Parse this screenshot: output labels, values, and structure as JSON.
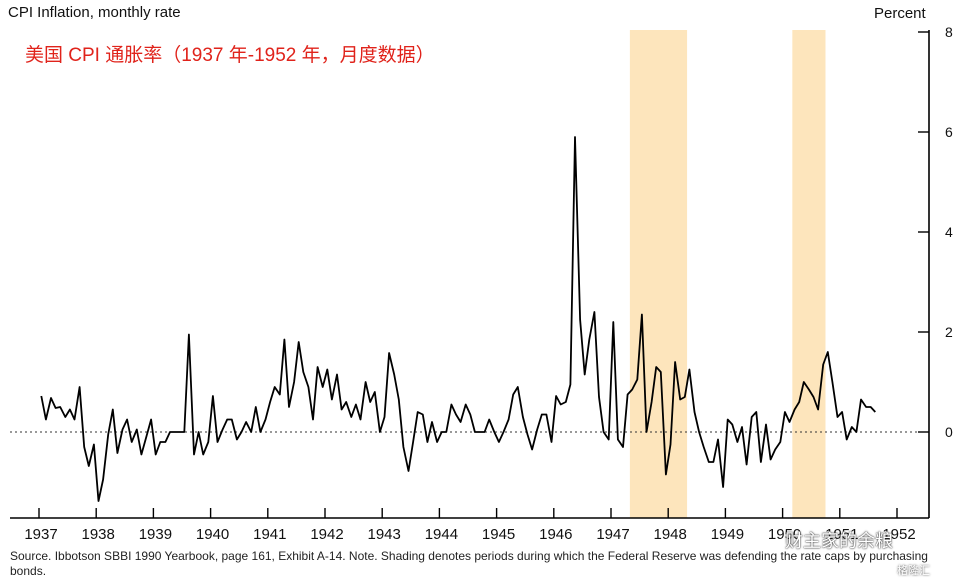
{
  "chart_data": {
    "type": "line",
    "title": "CPI Inflation, monthly rate",
    "subtitle": "美国 CPI 通胀率（1937 年-1952 年，月度数据）",
    "ylabel": "Percent",
    "xlabel": "",
    "xlim": [
      1937.0,
      1952.0
    ],
    "ylim": [
      -1.7,
      8
    ],
    "y_ticks": [
      0,
      2,
      4,
      6,
      8
    ],
    "x_tick_labels": [
      "1937",
      "1938",
      "1939",
      "1940",
      "1941",
      "1942",
      "1943",
      "1944",
      "1945",
      "1946",
      "1947",
      "1948",
      "1949",
      "1950",
      "1951",
      "1952"
    ],
    "grid": false,
    "zero_line": "dotted",
    "line_color": "#000000",
    "shading_color": "#fde5bc",
    "shaded_periods": [
      [
        1947.33,
        1948.33
      ],
      [
        1950.17,
        1950.75
      ]
    ],
    "series": [
      {
        "values": [
          [
            1937.04,
            0.72
          ],
          [
            1937.12,
            0.25
          ],
          [
            1937.21,
            0.68
          ],
          [
            1937.29,
            0.48
          ],
          [
            1937.37,
            0.5
          ],
          [
            1937.46,
            0.3
          ],
          [
            1937.54,
            0.45
          ],
          [
            1937.62,
            0.25
          ],
          [
            1937.71,
            0.9
          ],
          [
            1937.79,
            -0.3
          ],
          [
            1937.87,
            -0.68
          ],
          [
            1937.96,
            -0.25
          ],
          [
            1938.04,
            -1.38
          ],
          [
            1938.12,
            -0.95
          ],
          [
            1938.21,
            -0.05
          ],
          [
            1938.29,
            0.45
          ],
          [
            1938.37,
            -0.42
          ],
          [
            1938.46,
            0.05
          ],
          [
            1938.54,
            0.25
          ],
          [
            1938.62,
            -0.2
          ],
          [
            1938.71,
            0.05
          ],
          [
            1938.79,
            -0.45
          ],
          [
            1938.87,
            -0.12
          ],
          [
            1938.96,
            0.25
          ],
          [
            1939.04,
            -0.45
          ],
          [
            1939.12,
            -0.2
          ],
          [
            1939.21,
            -0.2
          ],
          [
            1939.29,
            0.0
          ],
          [
            1939.37,
            0.0
          ],
          [
            1939.46,
            0.0
          ],
          [
            1939.54,
            0.0
          ],
          [
            1939.62,
            1.95
          ],
          [
            1939.71,
            -0.45
          ],
          [
            1939.79,
            0.0
          ],
          [
            1939.87,
            -0.45
          ],
          [
            1939.96,
            -0.2
          ],
          [
            1940.04,
            0.72
          ],
          [
            1940.12,
            -0.2
          ],
          [
            1940.21,
            0.05
          ],
          [
            1940.29,
            0.25
          ],
          [
            1940.37,
            0.25
          ],
          [
            1940.46,
            -0.15
          ],
          [
            1940.54,
            0.0
          ],
          [
            1940.62,
            0.2
          ],
          [
            1940.71,
            0.0
          ],
          [
            1940.79,
            0.5
          ],
          [
            1940.87,
            0.0
          ],
          [
            1940.96,
            0.25
          ],
          [
            1941.04,
            0.6
          ],
          [
            1941.12,
            0.9
          ],
          [
            1941.21,
            0.75
          ],
          [
            1941.29,
            1.85
          ],
          [
            1941.37,
            0.5
          ],
          [
            1941.46,
            1.0
          ],
          [
            1941.54,
            1.8
          ],
          [
            1941.62,
            1.2
          ],
          [
            1941.71,
            0.9
          ],
          [
            1941.79,
            0.25
          ],
          [
            1941.87,
            1.3
          ],
          [
            1941.96,
            0.9
          ],
          [
            1942.04,
            1.25
          ],
          [
            1942.12,
            0.65
          ],
          [
            1942.21,
            1.15
          ],
          [
            1942.29,
            0.45
          ],
          [
            1942.37,
            0.6
          ],
          [
            1942.46,
            0.3
          ],
          [
            1942.54,
            0.55
          ],
          [
            1942.62,
            0.25
          ],
          [
            1942.71,
            1.0
          ],
          [
            1942.79,
            0.6
          ],
          [
            1942.87,
            0.8
          ],
          [
            1942.96,
            0.0
          ],
          [
            1943.04,
            0.3
          ],
          [
            1943.12,
            1.58
          ],
          [
            1943.21,
            1.15
          ],
          [
            1943.29,
            0.65
          ],
          [
            1943.37,
            -0.3
          ],
          [
            1943.46,
            -0.78
          ],
          [
            1943.54,
            -0.2
          ],
          [
            1943.62,
            0.4
          ],
          [
            1943.71,
            0.35
          ],
          [
            1943.79,
            -0.2
          ],
          [
            1943.87,
            0.2
          ],
          [
            1943.96,
            -0.2
          ],
          [
            1944.04,
            0.0
          ],
          [
            1944.12,
            0.0
          ],
          [
            1944.21,
            0.55
          ],
          [
            1944.29,
            0.35
          ],
          [
            1944.37,
            0.2
          ],
          [
            1944.46,
            0.55
          ],
          [
            1944.54,
            0.35
          ],
          [
            1944.62,
            0.0
          ],
          [
            1944.71,
            0.0
          ],
          [
            1944.79,
            0.0
          ],
          [
            1944.87,
            0.25
          ],
          [
            1944.96,
            0.0
          ],
          [
            1945.04,
            -0.2
          ],
          [
            1945.12,
            0.0
          ],
          [
            1945.21,
            0.25
          ],
          [
            1945.29,
            0.75
          ],
          [
            1945.37,
            0.9
          ],
          [
            1945.46,
            0.3
          ],
          [
            1945.54,
            -0.05
          ],
          [
            1945.62,
            -0.35
          ],
          [
            1945.71,
            0.05
          ],
          [
            1945.79,
            0.35
          ],
          [
            1945.87,
            0.35
          ],
          [
            1945.96,
            -0.2
          ],
          [
            1946.04,
            0.72
          ],
          [
            1946.12,
            0.55
          ],
          [
            1946.21,
            0.6
          ],
          [
            1946.29,
            0.95
          ],
          [
            1946.37,
            5.9
          ],
          [
            1946.46,
            2.25
          ],
          [
            1946.54,
            1.15
          ],
          [
            1946.62,
            1.85
          ],
          [
            1946.71,
            2.4
          ],
          [
            1946.79,
            0.7
          ],
          [
            1946.87,
            0.0
          ],
          [
            1946.96,
            -0.15
          ],
          [
            1947.04,
            2.2
          ],
          [
            1947.12,
            -0.15
          ],
          [
            1947.21,
            -0.3
          ],
          [
            1947.29,
            0.75
          ],
          [
            1947.37,
            0.85
          ],
          [
            1947.46,
            1.05
          ],
          [
            1947.54,
            2.35
          ],
          [
            1947.62,
            0.0
          ],
          [
            1947.71,
            0.6
          ],
          [
            1947.79,
            1.3
          ],
          [
            1947.87,
            1.2
          ],
          [
            1947.96,
            -0.85
          ],
          [
            1948.04,
            -0.25
          ],
          [
            1948.12,
            1.4
          ],
          [
            1948.21,
            0.65
          ],
          [
            1948.29,
            0.7
          ],
          [
            1948.37,
            1.25
          ],
          [
            1948.46,
            0.4
          ],
          [
            1948.54,
            0.0
          ],
          [
            1948.62,
            -0.3
          ],
          [
            1948.71,
            -0.6
          ],
          [
            1948.79,
            -0.6
          ],
          [
            1948.87,
            -0.15
          ],
          [
            1948.96,
            -1.1
          ],
          [
            1949.04,
            0.25
          ],
          [
            1949.12,
            0.15
          ],
          [
            1949.21,
            -0.2
          ],
          [
            1949.29,
            0.1
          ],
          [
            1949.37,
            -0.65
          ],
          [
            1949.46,
            0.3
          ],
          [
            1949.54,
            0.4
          ],
          [
            1949.62,
            -0.6
          ],
          [
            1949.71,
            0.15
          ],
          [
            1949.79,
            -0.55
          ],
          [
            1949.87,
            -0.35
          ],
          [
            1949.96,
            -0.2
          ],
          [
            1950.04,
            0.4
          ],
          [
            1950.12,
            0.2
          ],
          [
            1950.21,
            0.45
          ],
          [
            1950.29,
            0.6
          ],
          [
            1950.37,
            1.0
          ],
          [
            1950.46,
            0.85
          ],
          [
            1950.54,
            0.7
          ],
          [
            1950.62,
            0.45
          ],
          [
            1950.71,
            1.35
          ],
          [
            1950.79,
            1.6
          ],
          [
            1950.87,
            1.0
          ],
          [
            1950.96,
            0.3
          ],
          [
            1951.04,
            0.4
          ],
          [
            1951.12,
            -0.15
          ],
          [
            1951.21,
            0.1
          ],
          [
            1951.29,
            0.0
          ],
          [
            1951.37,
            0.65
          ],
          [
            1951.46,
            0.5
          ],
          [
            1951.54,
            0.5
          ],
          [
            1951.62,
            0.4
          ]
        ]
      }
    ]
  },
  "header": {
    "title": "CPI Inflation, monthly rate",
    "unit": "Percent",
    "subtitle_cn": "美国 CPI 通胀率（1937 年-1952 年，月度数据）"
  },
  "footer": {
    "source": "Source.  Ibbotson SBBI 1990 Yearbook, page 161, Exhibit A-14. Note. Shading denotes periods during which the Federal Reserve was defending the rate caps by purchasing bonds."
  },
  "watermark": {
    "text": "财主家的余粮",
    "logo": "格隆汇"
  }
}
